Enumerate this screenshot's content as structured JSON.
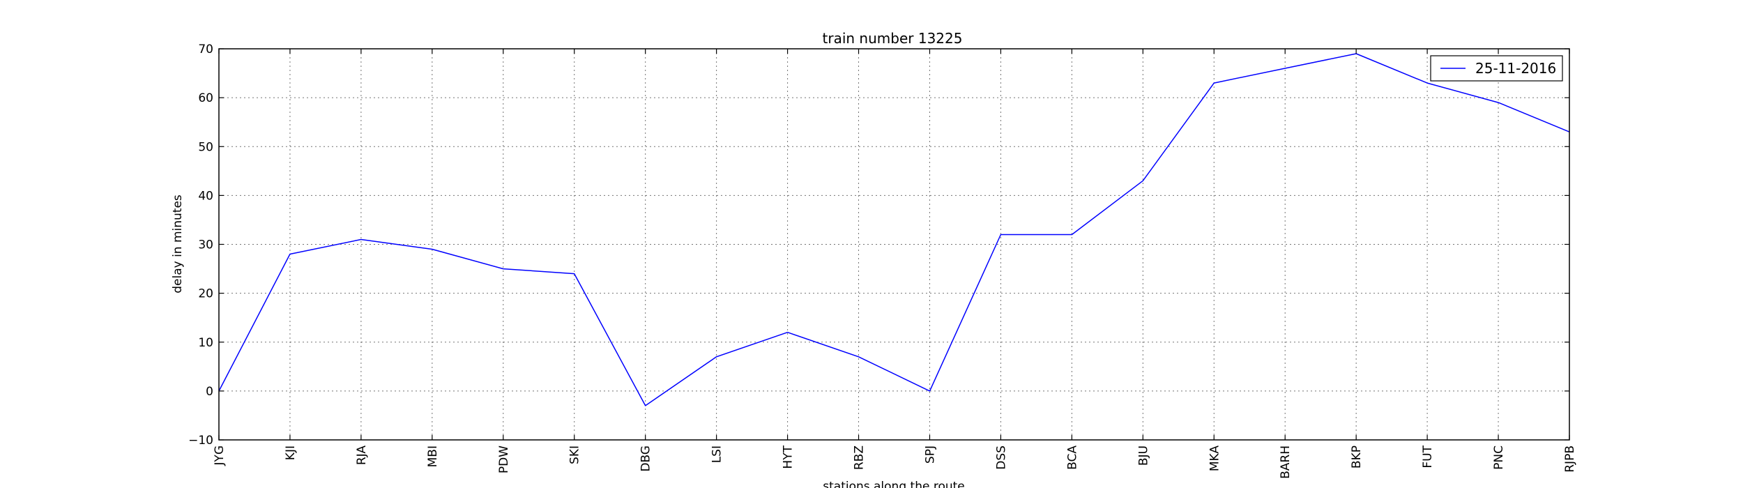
{
  "chart_data": {
    "type": "line",
    "title": "train number 13225",
    "xlabel": "stations along the route",
    "ylabel": "delay in minutes",
    "categories": [
      "JYG",
      "KJI",
      "RJA",
      "MBI",
      "PDW",
      "SKI",
      "DBG",
      "LSI",
      "HYT",
      "RBZ",
      "SPJ",
      "DSS",
      "BCA",
      "BJU",
      "MKA",
      "BARH",
      "BKP",
      "FUT",
      "PNC",
      "RJPB"
    ],
    "series": [
      {
        "name": "25-11-2016",
        "color": "#0000ff",
        "values": [
          0,
          28,
          31,
          29,
          25,
          24,
          -3,
          7,
          12,
          7,
          0,
          32,
          32,
          43,
          63,
          66,
          69,
          63,
          59,
          53
        ]
      }
    ],
    "ylim": [
      -10,
      70
    ],
    "yticks": [
      -10,
      0,
      10,
      20,
      30,
      40,
      50,
      60,
      70
    ],
    "grid": true,
    "legend_position": "top-right"
  }
}
